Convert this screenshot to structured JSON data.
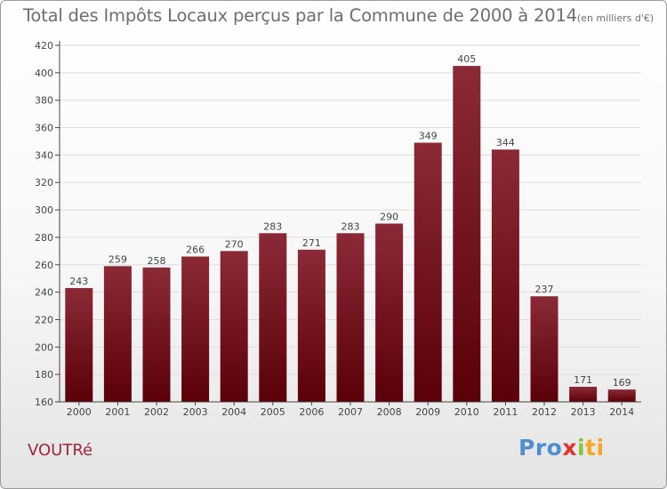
{
  "header": {
    "title": "Total des Impôts Locaux perçus par la Commune de 2000 à 2014",
    "unit": "(en milliers d'€)"
  },
  "footer": {
    "commune": "VOUTRé",
    "brand_parts": [
      "Pro",
      "x",
      "i",
      "ti"
    ]
  },
  "colors": {
    "bar_top": "#8b2a36",
    "bar_bottom": "#5a0008",
    "grid": "#dddddd",
    "axis": "#444444",
    "text": "#444444"
  },
  "chart_data": {
    "type": "bar",
    "title": "Total des Impôts Locaux perçus par la Commune de 2000 à 2014",
    "subtitle": "(en milliers d'€)",
    "xlabel": "",
    "ylabel": "",
    "categories": [
      "2000",
      "2001",
      "2002",
      "2003",
      "2004",
      "2005",
      "2006",
      "2007",
      "2008",
      "2009",
      "2010",
      "2011",
      "2012",
      "2013",
      "2014"
    ],
    "values": [
      243,
      259,
      258,
      266,
      270,
      283,
      271,
      283,
      290,
      349,
      405,
      344,
      237,
      171,
      169
    ],
    "ylim": [
      160,
      420
    ],
    "yticks": [
      160,
      180,
      200,
      220,
      240,
      260,
      280,
      300,
      320,
      340,
      360,
      380,
      400,
      420
    ],
    "grid": true,
    "data_labels": true
  }
}
